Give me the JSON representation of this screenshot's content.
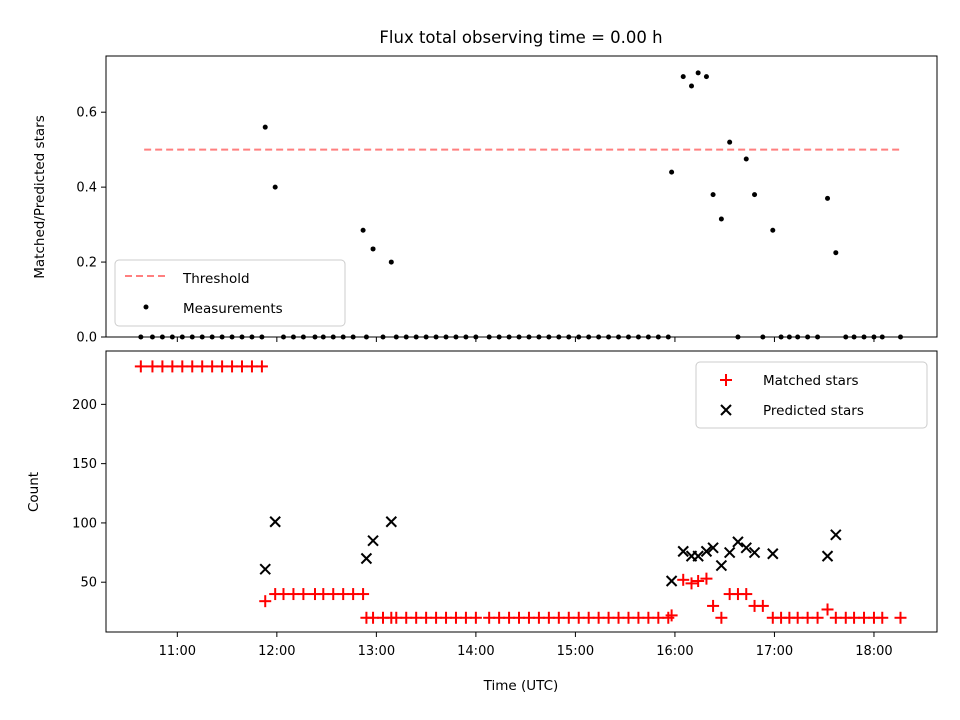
{
  "chart_data": [
    {
      "type": "scatter",
      "title": "Flux total observing time = 0.00 h",
      "ylabel": "Matched/Predicted stars",
      "xlim": [
        "10:17",
        "18:38"
      ],
      "ylim": [
        0,
        0.75
      ],
      "yticks": [
        0.0,
        0.2,
        0.4,
        0.6
      ],
      "ytick_labels": [
        "0.0",
        "0.2",
        "0.4",
        "0.6"
      ],
      "legend_position": "lower-left",
      "threshold": {
        "name": "Threshold",
        "value": 0.5,
        "x_start": "10:40",
        "x_end": "18:17",
        "color": "#ff7f7f",
        "style": "dashed"
      },
      "series": [
        {
          "name": "Measurements",
          "color": "#000000",
          "marker": "dot",
          "x": [
            "10:38",
            "10:45",
            "10:51",
            "10:57",
            "11:03",
            "11:09",
            "11:15",
            "11:21",
            "11:27",
            "11:33",
            "11:39",
            "11:45",
            "11:51",
            "11:53",
            "11:59",
            "12:04",
            "12:10",
            "12:16",
            "12:23",
            "12:28",
            "12:34",
            "12:40",
            "12:46",
            "12:52",
            "12:54",
            "12:58",
            "13:04",
            "13:09",
            "13:12",
            "13:18",
            "13:24",
            "13:30",
            "13:36",
            "13:42",
            "13:48",
            "13:54",
            "14:00",
            "14:08",
            "14:14",
            "14:20",
            "14:26",
            "14:32",
            "14:38",
            "14:44",
            "14:50",
            "14:56",
            "15:02",
            "15:08",
            "15:14",
            "15:20",
            "15:26",
            "15:32",
            "15:38",
            "15:44",
            "15:50",
            "15:56",
            "15:58",
            "16:05",
            "16:10",
            "16:14",
            "16:19",
            "16:23",
            "16:28",
            "16:33",
            "16:38",
            "16:43",
            "16:48",
            "16:53",
            "16:59",
            "17:04",
            "17:09",
            "17:14",
            "17:20",
            "17:26",
            "17:32",
            "17:37",
            "17:43",
            "17:48",
            "17:54",
            "18:00",
            "18:05",
            "18:16"
          ],
          "y": [
            0,
            0,
            0,
            0,
            0,
            0,
            0,
            0,
            0,
            0,
            0,
            0,
            0,
            0.56,
            0.4,
            0,
            0,
            0,
            0,
            0,
            0,
            0,
            0,
            0.285,
            0,
            0.235,
            0,
            0.2,
            0,
            0,
            0,
            0,
            0,
            0,
            0,
            0,
            0,
            0,
            0,
            0,
            0,
            0,
            0,
            0,
            0,
            0,
            0,
            0,
            0,
            0,
            0,
            0,
            0,
            0,
            0,
            0,
            0.44,
            0.695,
            0.67,
            0.705,
            0.695,
            0.38,
            0.315,
            0.52,
            0,
            0.475,
            0.38,
            0,
            0.285,
            0,
            0,
            0,
            0,
            0,
            0.37,
            0.225,
            0,
            0,
            0,
            0,
            0,
            0
          ]
        }
      ]
    },
    {
      "type": "scatter",
      "xlabel": "Time (UTC)",
      "ylabel": "Count",
      "xlim": [
        "10:17",
        "18:38"
      ],
      "ylim": [
        8,
        245
      ],
      "yticks": [
        50,
        100,
        150,
        200
      ],
      "ytick_labels": [
        "50",
        "100",
        "150",
        "200"
      ],
      "xticks": [
        "11:00",
        "12:00",
        "13:00",
        "14:00",
        "15:00",
        "16:00",
        "17:00",
        "18:00"
      ],
      "legend_position": "upper-right",
      "series": [
        {
          "name": "Matched stars",
          "color": "#ff0000",
          "marker": "plus",
          "x": [
            "10:38",
            "10:45",
            "10:51",
            "10:57",
            "11:03",
            "11:09",
            "11:15",
            "11:21",
            "11:27",
            "11:33",
            "11:39",
            "11:45",
            "11:51",
            "11:53",
            "11:59",
            "12:04",
            "12:10",
            "12:16",
            "12:23",
            "12:28",
            "12:34",
            "12:40",
            "12:46",
            "12:52",
            "12:54",
            "12:58",
            "13:04",
            "13:09",
            "13:12",
            "13:18",
            "13:24",
            "13:30",
            "13:36",
            "13:42",
            "13:48",
            "13:54",
            "14:00",
            "14:08",
            "14:14",
            "14:20",
            "14:26",
            "14:32",
            "14:38",
            "14:44",
            "14:50",
            "14:56",
            "15:02",
            "15:08",
            "15:14",
            "15:20",
            "15:26",
            "15:32",
            "15:38",
            "15:44",
            "15:50",
            "15:56",
            "15:58",
            "16:05",
            "16:10",
            "16:14",
            "16:19",
            "16:23",
            "16:28",
            "16:33",
            "16:38",
            "16:43",
            "16:48",
            "16:53",
            "16:59",
            "17:04",
            "17:09",
            "17:14",
            "17:20",
            "17:26",
            "17:32",
            "17:37",
            "17:43",
            "17:48",
            "17:54",
            "18:00",
            "18:05",
            "18:16"
          ],
          "y": [
            232,
            232,
            232,
            232,
            232,
            232,
            232,
            232,
            232,
            232,
            232,
            232,
            232,
            34,
            40,
            40,
            40,
            40,
            40,
            40,
            40,
            40,
            40,
            40,
            20,
            20,
            20,
            20,
            20,
            20,
            20,
            20,
            20,
            20,
            20,
            20,
            20,
            20,
            20,
            20,
            20,
            20,
            20,
            20,
            20,
            20,
            20,
            20,
            20,
            20,
            20,
            20,
            20,
            20,
            20,
            20,
            22,
            52,
            49,
            51,
            53,
            30,
            20,
            40,
            40,
            40,
            30,
            30,
            20,
            20,
            20,
            20,
            20,
            20,
            27,
            20,
            20,
            20,
            20,
            20,
            20,
            20
          ]
        },
        {
          "name": "Predicted stars",
          "color": "#000000",
          "marker": "x",
          "x": [
            "11:53",
            "11:59",
            "12:54",
            "12:58",
            "13:09",
            "15:58",
            "16:05",
            "16:10",
            "16:14",
            "16:19",
            "16:23",
            "16:28",
            "16:33",
            "16:38",
            "16:43",
            "16:48",
            "16:59",
            "17:32",
            "17:37"
          ],
          "y": [
            61,
            101,
            70,
            85,
            101,
            51,
            76,
            72,
            72,
            76,
            79,
            64,
            75,
            84,
            79,
            75,
            74,
            72,
            90
          ]
        }
      ]
    }
  ]
}
